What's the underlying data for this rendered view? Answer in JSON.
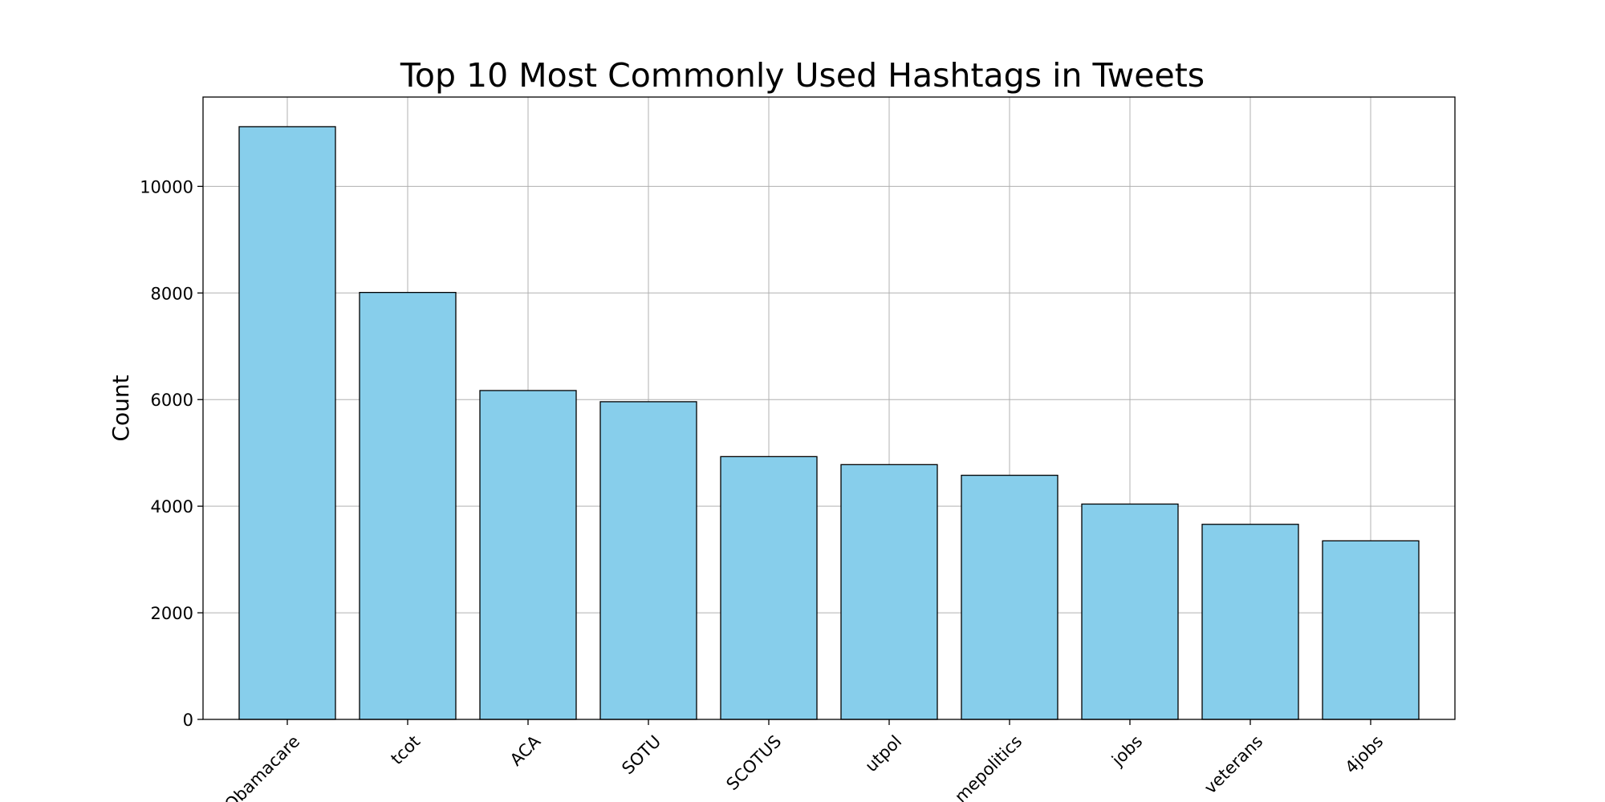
{
  "chart_data": {
    "type": "bar",
    "title": "Top 10 Most Commonly Used Hashtags in Tweets",
    "xlabel": "",
    "ylabel": "Count",
    "categories": [
      "Obamacare",
      "tcot",
      "ACA",
      "SOTU",
      "SCOTUS",
      "utpol",
      "mepolitics",
      "jobs",
      "veterans",
      "4jobs"
    ],
    "values": [
      11120,
      8010,
      6170,
      5960,
      4930,
      4780,
      4580,
      4040,
      3660,
      3350
    ],
    "ylim": [
      0,
      11676
    ],
    "yticks": [
      0,
      2000,
      4000,
      6000,
      8000,
      10000
    ],
    "grid": true,
    "bar_color": "#87CEEB",
    "edge_color": "#000000"
  }
}
